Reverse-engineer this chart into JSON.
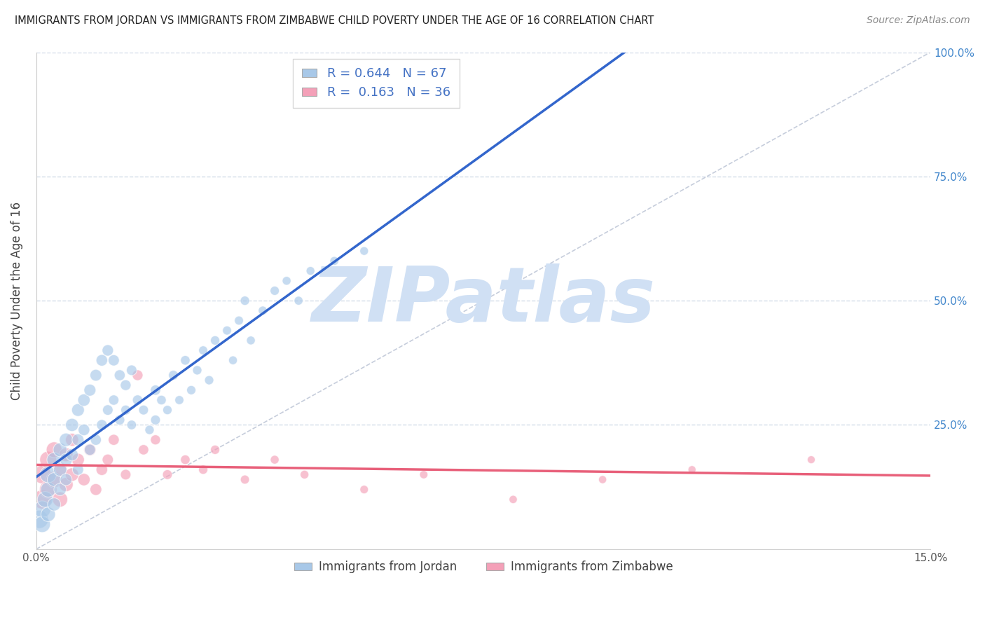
{
  "title": "IMMIGRANTS FROM JORDAN VS IMMIGRANTS FROM ZIMBABWE CHILD POVERTY UNDER THE AGE OF 16 CORRELATION CHART",
  "source": "Source: ZipAtlas.com",
  "ylabel": "Child Poverty Under the Age of 16",
  "xlim": [
    0,
    0.15
  ],
  "ylim": [
    0,
    1.0
  ],
  "jordan_R": 0.644,
  "jordan_N": 67,
  "zimbabwe_R": 0.163,
  "zimbabwe_N": 36,
  "jordan_color": "#a8c8e8",
  "zimbabwe_color": "#f4a0b8",
  "jordan_line_color": "#3366cc",
  "zimbabwe_line_color": "#e8607a",
  "ref_line_color": "#c0c8d8",
  "background_color": "#ffffff",
  "grid_color": "#c8d4e4",
  "watermark_color": "#d0e0f4",
  "jordan_x": [
    0.0005,
    0.001,
    0.001,
    0.0015,
    0.002,
    0.002,
    0.002,
    0.003,
    0.003,
    0.003,
    0.004,
    0.004,
    0.004,
    0.005,
    0.005,
    0.005,
    0.006,
    0.006,
    0.007,
    0.007,
    0.007,
    0.008,
    0.008,
    0.009,
    0.009,
    0.01,
    0.01,
    0.011,
    0.011,
    0.012,
    0.012,
    0.013,
    0.013,
    0.014,
    0.014,
    0.015,
    0.015,
    0.016,
    0.016,
    0.017,
    0.018,
    0.019,
    0.02,
    0.02,
    0.021,
    0.022,
    0.023,
    0.024,
    0.025,
    0.026,
    0.027,
    0.028,
    0.029,
    0.03,
    0.032,
    0.033,
    0.034,
    0.035,
    0.036,
    0.038,
    0.04,
    0.042,
    0.044,
    0.046,
    0.048,
    0.05,
    0.055
  ],
  "jordan_y": [
    0.06,
    0.08,
    0.05,
    0.1,
    0.12,
    0.07,
    0.15,
    0.14,
    0.18,
    0.09,
    0.2,
    0.16,
    0.12,
    0.22,
    0.18,
    0.14,
    0.25,
    0.19,
    0.28,
    0.22,
    0.16,
    0.3,
    0.24,
    0.32,
    0.2,
    0.35,
    0.22,
    0.38,
    0.25,
    0.4,
    0.28,
    0.38,
    0.3,
    0.35,
    0.26,
    0.33,
    0.28,
    0.36,
    0.25,
    0.3,
    0.28,
    0.24,
    0.26,
    0.32,
    0.3,
    0.28,
    0.35,
    0.3,
    0.38,
    0.32,
    0.36,
    0.4,
    0.34,
    0.42,
    0.44,
    0.38,
    0.46,
    0.5,
    0.42,
    0.48,
    0.52,
    0.54,
    0.5,
    0.56,
    0.48,
    0.58,
    0.6
  ],
  "zimbabwe_x": [
    0.001,
    0.001,
    0.002,
    0.002,
    0.003,
    0.003,
    0.004,
    0.004,
    0.005,
    0.005,
    0.006,
    0.006,
    0.007,
    0.008,
    0.009,
    0.01,
    0.011,
    0.012,
    0.013,
    0.015,
    0.017,
    0.018,
    0.02,
    0.022,
    0.025,
    0.028,
    0.03,
    0.035,
    0.04,
    0.045,
    0.055,
    0.065,
    0.08,
    0.095,
    0.11,
    0.13
  ],
  "zimbabwe_y": [
    0.1,
    0.15,
    0.12,
    0.18,
    0.14,
    0.2,
    0.1,
    0.16,
    0.13,
    0.19,
    0.15,
    0.22,
    0.18,
    0.14,
    0.2,
    0.12,
    0.16,
    0.18,
    0.22,
    0.15,
    0.35,
    0.2,
    0.22,
    0.15,
    0.18,
    0.16,
    0.2,
    0.14,
    0.18,
    0.15,
    0.12,
    0.15,
    0.1,
    0.14,
    0.16,
    0.18
  ],
  "jordan_bubble_sizes": [
    350,
    300,
    280,
    260,
    240,
    220,
    280,
    200,
    220,
    180,
    200,
    180,
    160,
    190,
    170,
    150,
    180,
    160,
    170,
    150,
    130,
    160,
    140,
    150,
    130,
    145,
    125,
    140,
    120,
    135,
    115,
    130,
    110,
    125,
    105,
    120,
    100,
    115,
    95,
    110,
    100,
    90,
    100,
    110,
    95,
    90,
    100,
    85,
    95,
    88,
    90,
    85,
    88,
    90,
    85,
    80,
    85,
    90,
    80,
    85,
    88,
    80,
    82,
    78,
    80,
    82,
    78
  ],
  "zimbabwe_bubble_sizes": [
    380,
    350,
    320,
    300,
    280,
    260,
    240,
    220,
    210,
    200,
    190,
    180,
    170,
    160,
    155,
    145,
    140,
    130,
    125,
    115,
    120,
    110,
    105,
    100,
    95,
    90,
    90,
    85,
    80,
    78,
    75,
    72,
    70,
    68,
    66,
    65
  ]
}
